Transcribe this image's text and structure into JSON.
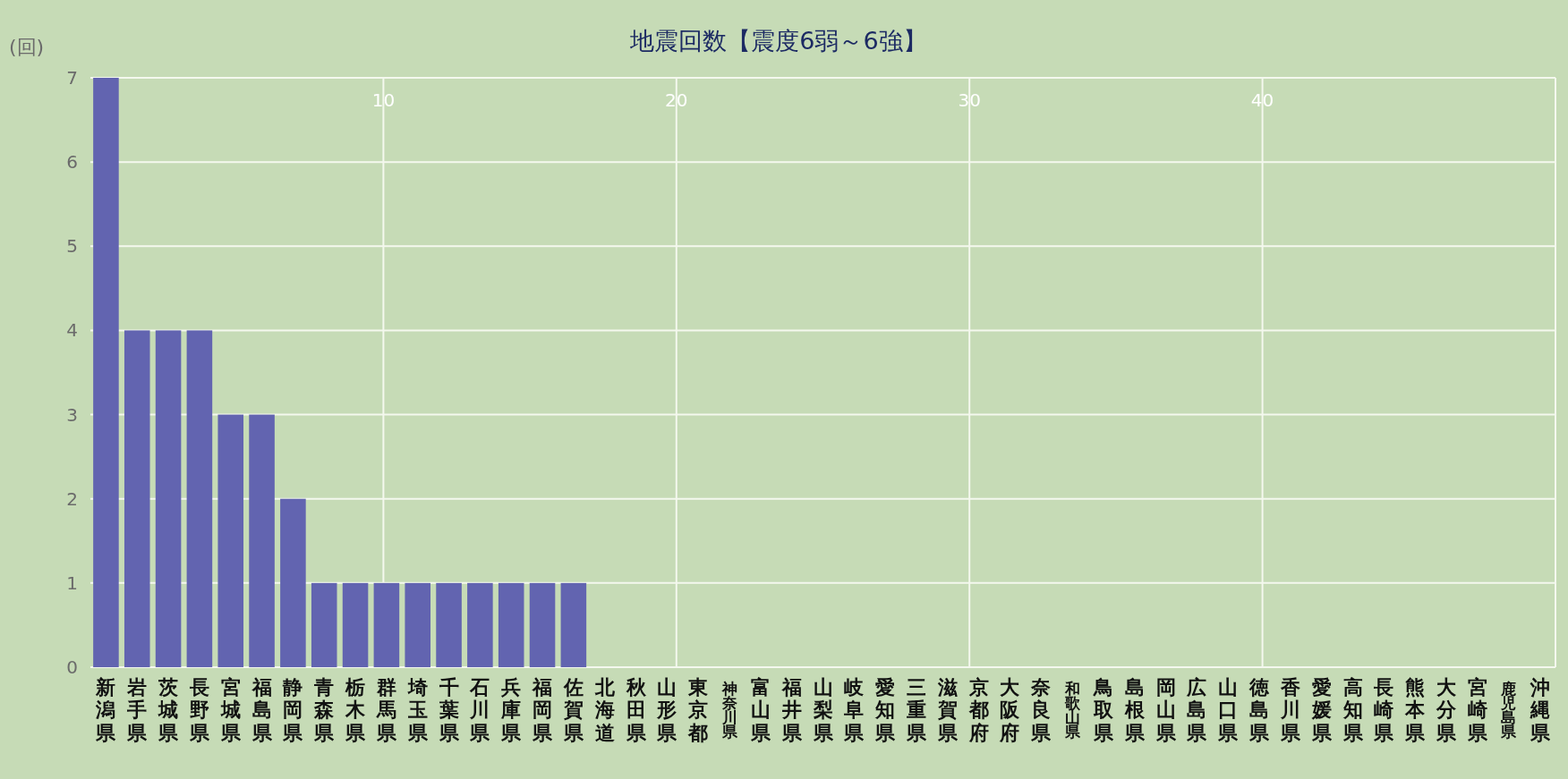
{
  "chart_data": {
    "type": "bar",
    "title": "地震回数【震度6弱～6強】",
    "ylabel": "(回)",
    "categories": [
      "新潟県",
      "岩手県",
      "茨城県",
      "長野県",
      "宮城県",
      "福島県",
      "静岡県",
      "青森県",
      "栃木県",
      "群馬県",
      "埼玉県",
      "千葉県",
      "石川県",
      "兵庫県",
      "福岡県",
      "佐賀県",
      "北海道",
      "秋田県",
      "山形県",
      "東京都",
      "神奈川県",
      "富山県",
      "福井県",
      "山梨県",
      "岐阜県",
      "愛知県",
      "三重県",
      "滋賀県",
      "京都府",
      "大阪府",
      "奈良県",
      "和歌山県",
      "鳥取県",
      "島根県",
      "岡山県",
      "広島県",
      "山口県",
      "徳島県",
      "香川県",
      "愛媛県",
      "高知県",
      "長崎県",
      "熊本県",
      "大分県",
      "宮崎県",
      "鹿児島県",
      "沖縄県"
    ],
    "values": [
      7,
      4,
      4,
      4,
      3,
      3,
      2,
      1,
      1,
      1,
      1,
      1,
      1,
      1,
      1,
      1,
      0,
      0,
      0,
      0,
      0,
      0,
      0,
      0,
      0,
      0,
      0,
      0,
      0,
      0,
      0,
      0,
      0,
      0,
      0,
      0,
      0,
      0,
      0,
      0,
      0,
      0,
      0,
      0,
      0,
      0,
      0
    ],
    "color": "#6264b0",
    "ylim": [
      0,
      7
    ],
    "yticks": [
      0,
      1,
      2,
      3,
      4,
      5,
      6,
      7
    ],
    "x2lim": [
      0,
      50
    ],
    "x2ticks": [
      10,
      20,
      30,
      40
    ],
    "grid": true
  }
}
